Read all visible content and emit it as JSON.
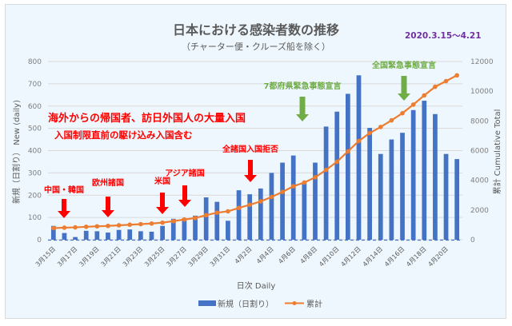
{
  "chart_data": {
    "type": "bar",
    "title": "日本における感染者数の推移",
    "subtitle": "（チャーター便・クルーズ船を除く）",
    "date_range": "2020.3.15〜4.21",
    "xlabel": "日次  Daily",
    "ylabel": "新規（日割り） New (daily)",
    "y2label": "累計  Cumulative Total",
    "ylim": [
      0,
      800
    ],
    "y2lim": [
      0,
      12000
    ],
    "yticks": [
      0,
      100,
      200,
      300,
      400,
      500,
      600,
      700,
      800
    ],
    "y2ticks": [
      0,
      2000,
      4000,
      6000,
      8000,
      10000,
      12000
    ],
    "grid": true,
    "legend_position": "bottom",
    "categories": [
      "3月15日",
      "3月16日",
      "3月17日",
      "3月18日",
      "3月19日",
      "3月20日",
      "3月21日",
      "3月22日",
      "3月23日",
      "3月24日",
      "3月25日",
      "3月26日",
      "3月27日",
      "3月28日",
      "3月29日",
      "3月30日",
      "3月31日",
      "4月1日",
      "4月2日",
      "4月3日",
      "4月4日",
      "4月5日",
      "4月6日",
      "4月7日",
      "4月8日",
      "4月9日",
      "4月10日",
      "4月11日",
      "4月12日",
      "4月13日",
      "4月14日",
      "4月15日",
      "4月16日",
      "4月17日",
      "4月18日",
      "4月19日",
      "4月20日",
      "4月21日"
    ],
    "xtick_labels": [
      "3月15日",
      "3月17日",
      "3月19日",
      "3月21日",
      "3月23日",
      "3月25日",
      "3月27日",
      "3月29日",
      "3月31日",
      "4月2日",
      "4月4日",
      "4月6日",
      "4月8日",
      "4月10日",
      "4月12日",
      "4月14日",
      "4月16日",
      "4月18日",
      "4月20日"
    ],
    "series": [
      {
        "name": "新規（日割り）",
        "type": "bar",
        "axis": "left",
        "color": "#4472c4",
        "values": [
          62,
          30,
          12,
          40,
          38,
          32,
          44,
          46,
          38,
          36,
          62,
          94,
          96,
          108,
          190,
          170,
          85,
          222,
          204,
          230,
          300,
          346,
          378,
          260,
          346,
          508,
          575,
          655,
          738,
          502,
          385,
          450,
          480,
          582,
          624,
          564,
          385,
          362
        ]
      },
      {
        "name": "累計",
        "type": "line",
        "axis": "right",
        "color": "#ed7d31",
        "values": [
          780,
          810,
          830,
          870,
          900,
          930,
          970,
          1010,
          1050,
          1090,
          1150,
          1250,
          1360,
          1460,
          1650,
          1820,
          1910,
          2140,
          2350,
          2580,
          2880,
          3220,
          3600,
          3850,
          4200,
          4700,
          5250,
          5950,
          6650,
          7180,
          7590,
          8040,
          8520,
          9100,
          9720,
          10300,
          10680,
          11070
        ]
      }
    ],
    "annotations": [
      {
        "text": "海外からの帰国者、訪日外国人の大量入国",
        "color": "#ff0000"
      },
      {
        "text": "入国制限直前の駆け込み入国含む",
        "color": "#ff0000"
      },
      {
        "text": "中国・韓国",
        "color": "#ff0000",
        "category": "3月16日"
      },
      {
        "text": "欧州諸国",
        "color": "#ff0000",
        "category": "3月20日"
      },
      {
        "text": "米国",
        "color": "#ff0000",
        "category": "3月25日"
      },
      {
        "text": "アジア諸国",
        "color": "#ff0000",
        "category": "3月27日"
      },
      {
        "text": "全諸国入国拒否",
        "color": "#ff0000",
        "category": "4月2日"
      },
      {
        "text": "7都府県緊急事態宣言",
        "color": "#70ad47",
        "category": "4月7日"
      },
      {
        "text": "全国緊急事態宣言",
        "color": "#70ad47",
        "category": "4月16日"
      }
    ]
  }
}
